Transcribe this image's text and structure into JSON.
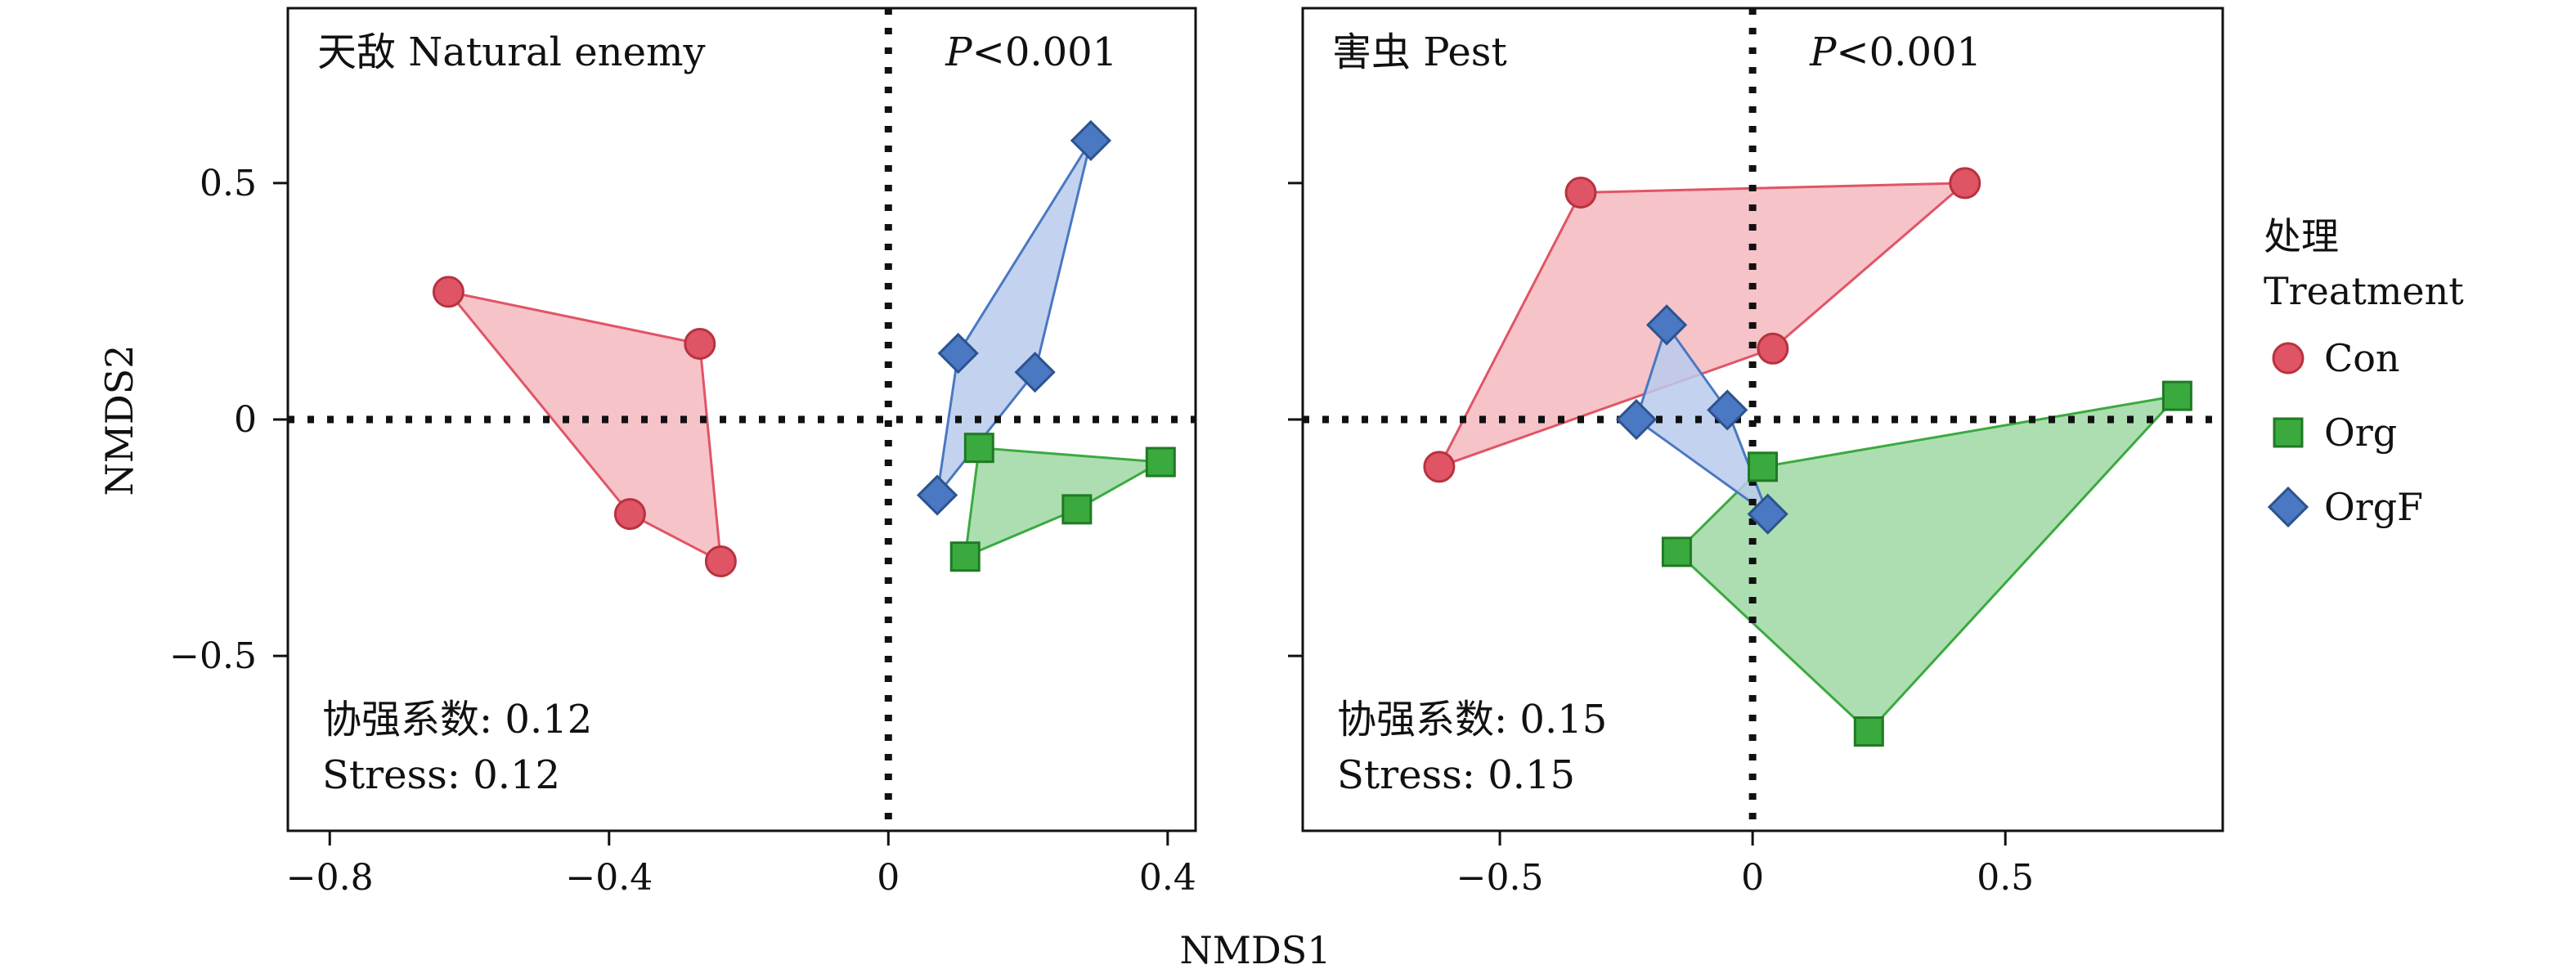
{
  "figure": {
    "xlabel": "NMDS1",
    "ylabel": "NMDS2"
  },
  "colors": {
    "Con": {
      "fill": "#e05565",
      "stroke": "#b8323f",
      "hull": "#f4b9c0"
    },
    "Org": {
      "fill": "#3aaa3f",
      "stroke": "#1f7a24",
      "hull": "#9fd8a3"
    },
    "OrgF": {
      "fill": "#4a78c2",
      "stroke": "#2d538f",
      "hull": "#b9cbec"
    }
  },
  "legend": {
    "title_line1": "处理",
    "title_line2": "Treatment",
    "items": [
      {
        "group": "Con",
        "label": "Con",
        "marker": "circle"
      },
      {
        "group": "Org",
        "label": "Org",
        "marker": "square"
      },
      {
        "group": "OrgF",
        "label": "OrgF",
        "marker": "diamond"
      }
    ]
  },
  "chart_data": [
    {
      "type": "scatter",
      "title": "天敌 Natural enemy",
      "p_label_italic": "P",
      "p_label_rest": "<0.001",
      "coef_text": "协强系数: 0.12",
      "stress_text": "Stress: 0.12",
      "xlim": [
        -0.86,
        0.44
      ],
      "ylim": [
        -0.87,
        0.87
      ],
      "xticks": [
        -0.8,
        -0.4,
        0,
        0.4
      ],
      "xtick_labels": [
        "−0.8",
        "−0.4",
        "0",
        "0.4"
      ],
      "yticks": [
        0.5,
        0,
        -0.5
      ],
      "ytick_labels": [
        "0.5",
        "0",
        "−0.5"
      ],
      "series": [
        {
          "group": "Con",
          "x": [
            -0.63,
            -0.27,
            -0.24,
            -0.37
          ],
          "y": [
            0.27,
            0.16,
            -0.3,
            -0.2
          ]
        },
        {
          "group": "Org",
          "x": [
            0.13,
            0.39,
            0.27,
            0.11
          ],
          "y": [
            -0.06,
            -0.09,
            -0.19,
            -0.29
          ]
        },
        {
          "group": "OrgF",
          "x": [
            0.29,
            0.1,
            0.21,
            0.07
          ],
          "y": [
            0.59,
            0.14,
            0.1,
            -0.16
          ]
        }
      ]
    },
    {
      "type": "scatter",
      "title": "害虫 Pest",
      "p_label_italic": "P",
      "p_label_rest": "<0.001",
      "coef_text": "协强系数: 0.15",
      "stress_text": "Stress: 0.15",
      "xlim": [
        -0.89,
        0.93
      ],
      "ylim": [
        -0.87,
        0.87
      ],
      "xticks": [
        -0.5,
        0,
        0.5
      ],
      "xtick_labels": [
        "−0.5",
        "0",
        "0.5"
      ],
      "yticks": [
        0.5,
        0,
        -0.5
      ],
      "ytick_labels": [
        "",
        "",
        ""
      ],
      "series": [
        {
          "group": "Con",
          "x": [
            -0.62,
            -0.34,
            0.42,
            0.04
          ],
          "y": [
            -0.1,
            0.48,
            0.5,
            0.15
          ]
        },
        {
          "group": "Org",
          "x": [
            0.84,
            0.23,
            -0.15,
            0.02
          ],
          "y": [
            0.05,
            -0.66,
            -0.28,
            -0.1
          ]
        },
        {
          "group": "OrgF",
          "x": [
            -0.17,
            -0.05,
            0.03,
            -0.23
          ],
          "y": [
            0.2,
            0.02,
            -0.2,
            0.0
          ]
        }
      ]
    }
  ]
}
